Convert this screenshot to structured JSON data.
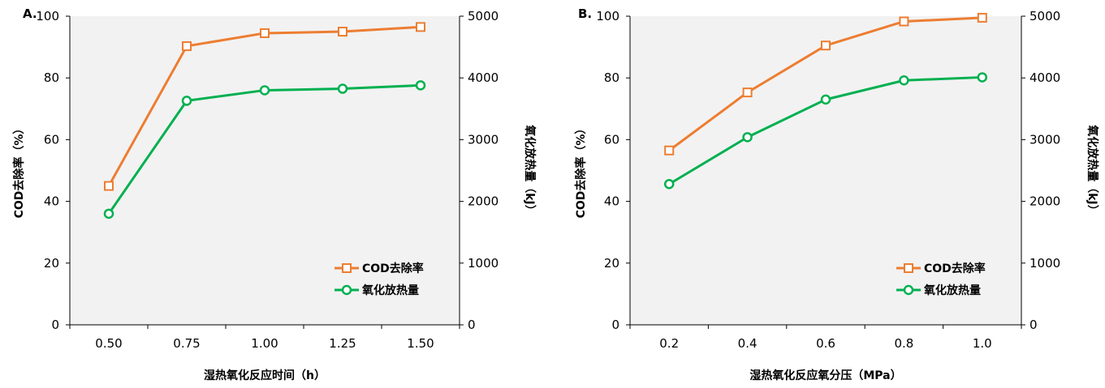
{
  "colors": {
    "cod": "#ED7D31",
    "heat": "#00B050",
    "plot_bg": "#F2F2F2",
    "axis": "#000000"
  },
  "chart_data": [
    {
      "type": "line",
      "panel_label": "A.",
      "xlabel": "湿热氧化反应时间（h）",
      "ylabel": "COD去除率（%）",
      "y2label": "氧化放热量（kJ）",
      "categories": [
        "0.50",
        "0.75",
        "1.00",
        "1.25",
        "1.50"
      ],
      "ylim": [
        0,
        100
      ],
      "yticks": [
        0,
        20,
        40,
        60,
        80,
        100
      ],
      "y2lim": [
        0,
        5000
      ],
      "y2ticks": [
        0,
        1000,
        2000,
        3000,
        4000,
        5000
      ],
      "legend_position": "bottom-right",
      "series": [
        {
          "name": "COD去除率",
          "axis": "left",
          "marker": "square",
          "color": "#ED7D31",
          "values": [
            45,
            90.3,
            94.5,
            95,
            96.5
          ]
        },
        {
          "name": "氧化放热量",
          "axis": "right",
          "marker": "circle",
          "color": "#00B050",
          "values": [
            1800,
            3630,
            3800,
            3825,
            3880
          ]
        }
      ]
    },
    {
      "type": "line",
      "panel_label": "B.",
      "xlabel": "湿热氧化反应氧分压（MPa）",
      "ylabel": "COD去除率（%）",
      "y2label": "氧化放热量（kJ）",
      "categories": [
        "0.2",
        "0.4",
        "0.6",
        "0.8",
        "1.0"
      ],
      "ylim": [
        0,
        100
      ],
      "yticks": [
        0,
        20,
        40,
        60,
        80,
        100
      ],
      "y2lim": [
        0,
        5000
      ],
      "y2ticks": [
        0,
        1000,
        2000,
        3000,
        4000,
        5000
      ],
      "legend_position": "bottom-right",
      "series": [
        {
          "name": "COD去除率",
          "axis": "left",
          "marker": "square",
          "color": "#ED7D31",
          "values": [
            56.5,
            75.3,
            90.5,
            98.3,
            99.5
          ]
        },
        {
          "name": "氧化放热量",
          "axis": "right",
          "marker": "circle",
          "color": "#00B050",
          "values": [
            2280,
            3040,
            3650,
            3960,
            4010
          ]
        }
      ]
    }
  ]
}
